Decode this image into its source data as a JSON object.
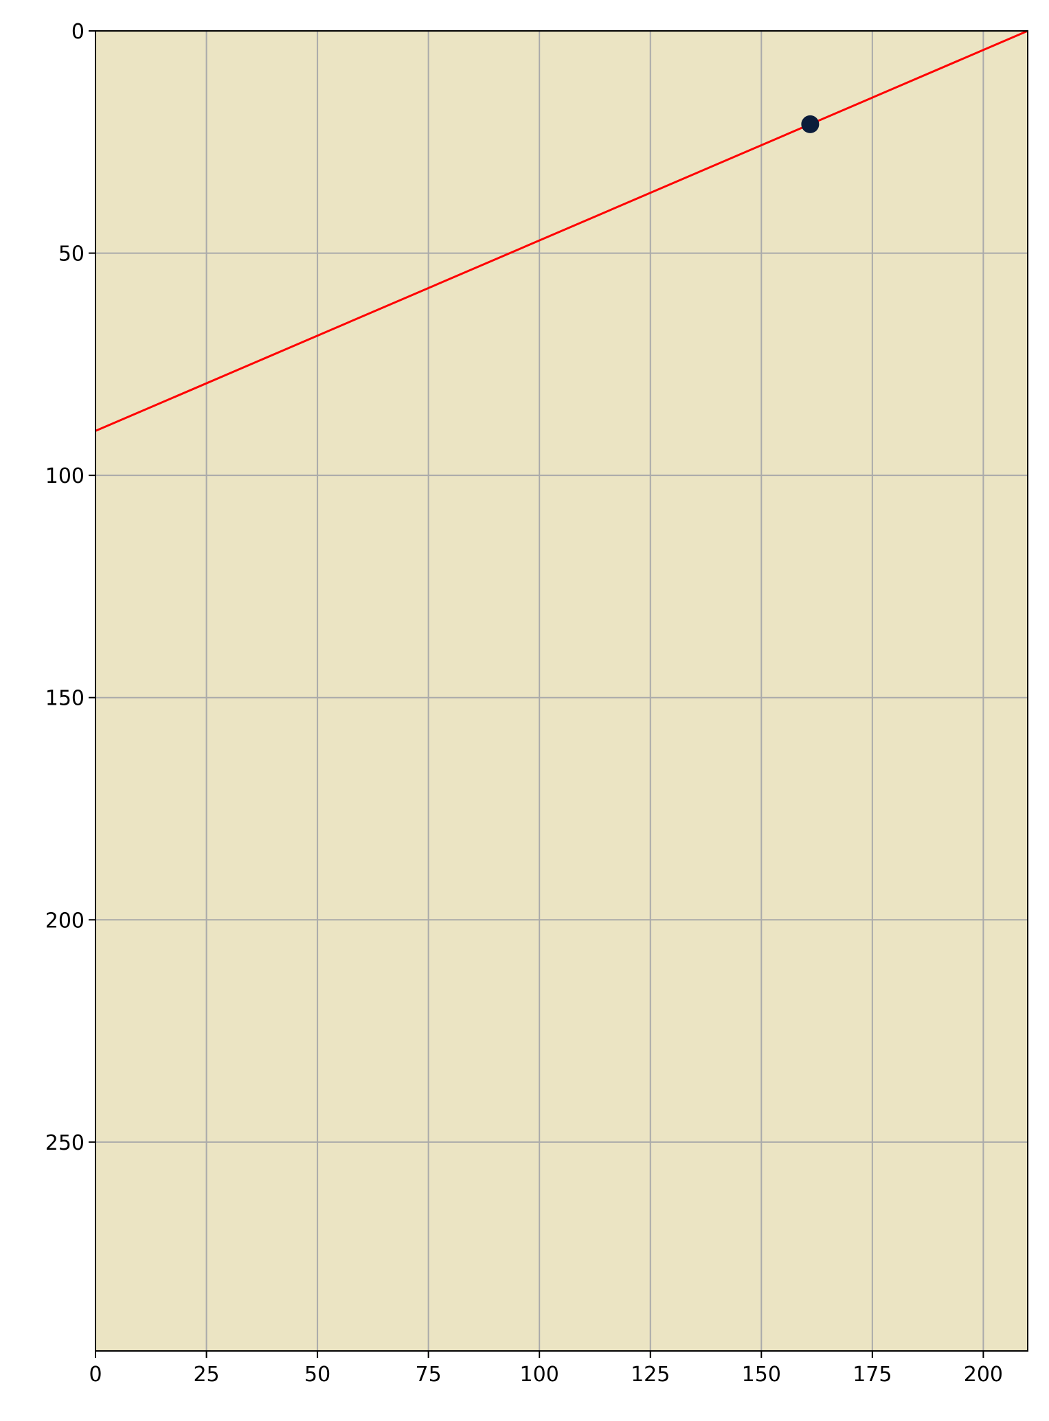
{
  "chart_data": {
    "type": "line",
    "title": "",
    "xlabel": "",
    "ylabel": "",
    "xlim": [
      0,
      210
    ],
    "ylim": [
      0,
      297
    ],
    "y_inverted": true,
    "grid": true,
    "x_ticks": [
      "0",
      "25",
      "50",
      "75",
      "100",
      "125",
      "150",
      "175",
      "200"
    ],
    "y_ticks": [
      "0",
      "50",
      "100",
      "150",
      "200",
      "250"
    ],
    "series": [
      {
        "type": "line",
        "x": [
          0,
          210
        ],
        "y": [
          90,
          0
        ],
        "color": "#ff0000"
      },
      {
        "type": "scatter",
        "x": [
          161
        ],
        "y": [
          21
        ],
        "color": "#0b1c3a"
      }
    ]
  },
  "colors": {
    "plot_background": "#ebe4c3",
    "grid": "#aaaaaa",
    "axes": "#000000"
  }
}
